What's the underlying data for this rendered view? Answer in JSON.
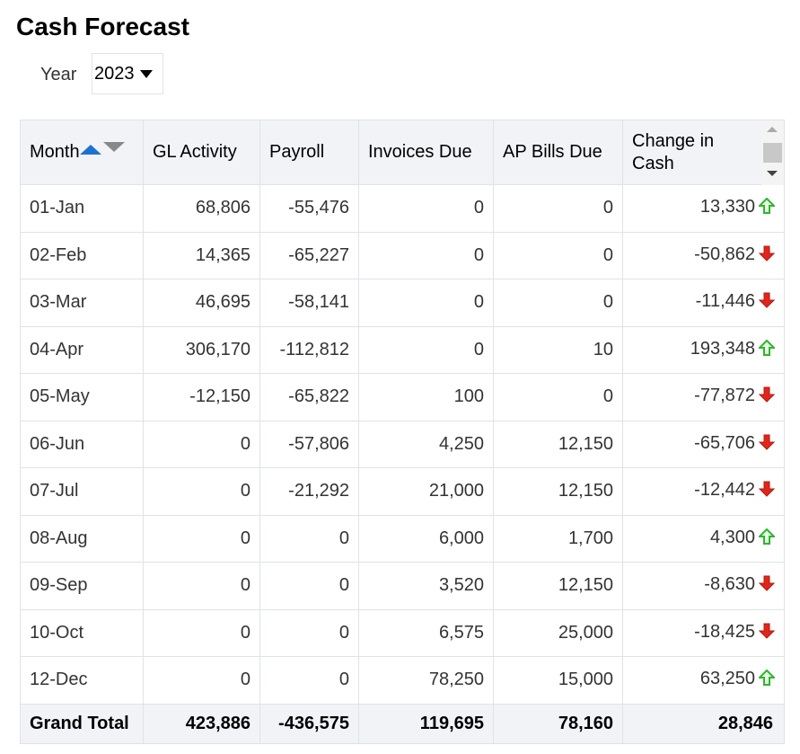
{
  "title": "Cash Forecast",
  "year": {
    "label": "Year",
    "value": "2023"
  },
  "columns": [
    "Month",
    "GL Activity",
    "Payroll",
    "Invoices Due",
    "AP Bills Due",
    "Change in Cash"
  ],
  "rows": [
    [
      "01-Jan",
      "68,806",
      "-55,476",
      "0",
      "0",
      "13,330",
      "up"
    ],
    [
      "02-Feb",
      "14,365",
      "-65,227",
      "0",
      "0",
      "-50,862",
      "down"
    ],
    [
      "03-Mar",
      "46,695",
      "-58,141",
      "0",
      "0",
      "-11,446",
      "down"
    ],
    [
      "04-Apr",
      "306,170",
      "-112,812",
      "0",
      "10",
      "193,348",
      "up"
    ],
    [
      "05-May",
      "-12,150",
      "-65,822",
      "100",
      "0",
      "-77,872",
      "down"
    ],
    [
      "06-Jun",
      "0",
      "-57,806",
      "4,250",
      "12,150",
      "-65,706",
      "down"
    ],
    [
      "07-Jul",
      "0",
      "-21,292",
      "21,000",
      "12,150",
      "-12,442",
      "down"
    ],
    [
      "08-Aug",
      "0",
      "0",
      "6,000",
      "1,700",
      "4,300",
      "up"
    ],
    [
      "09-Sep",
      "0",
      "0",
      "3,520",
      "12,150",
      "-8,630",
      "down"
    ],
    [
      "10-Oct",
      "0",
      "0",
      "6,575",
      "25,000",
      "-18,425",
      "down"
    ],
    [
      "12-Dec",
      "0",
      "0",
      "78,250",
      "15,000",
      "63,250",
      "up"
    ]
  ],
  "total": [
    "Grand Total",
    "423,886",
    "-436,575",
    "119,695",
    "78,160",
    "28,846"
  ],
  "colors": {
    "up": "#2fb52f",
    "down": "#e0261b",
    "sort_active": "#1a73d0"
  }
}
